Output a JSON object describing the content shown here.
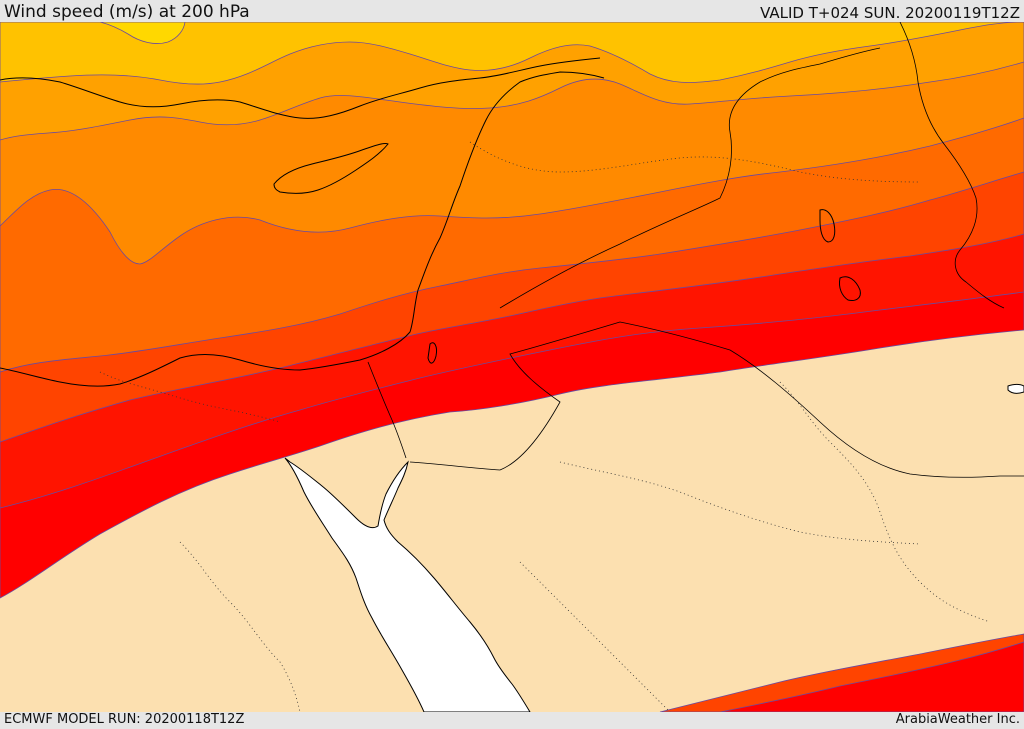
{
  "header": {
    "title": "Wind speed (m/s) at 200 hPa",
    "valid_time": "VALID T+024 SUN. 20200119T12Z"
  },
  "footer": {
    "model_run": "ECMWF MODEL RUN: 20200118T12Z",
    "credit": "ArabiaWeather Inc."
  },
  "colors": {
    "band_yellow": "#ffd800",
    "band_gold": "#ffc200",
    "band_amber": "#ffa100",
    "band_orange": "#ff8a00",
    "band_dark_orange": "#ff6a00",
    "band_red_orange": "#ff4400",
    "band_red": "#ff1400",
    "band_deep_red": "#ff0000",
    "below_threshold": "#fce0b0",
    "sea_gap": "#ffffff",
    "contour_line": "#6a4aa0",
    "coastline": "#000000"
  }
}
